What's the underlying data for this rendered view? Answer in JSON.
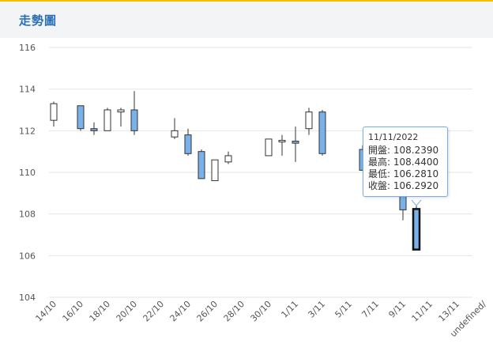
{
  "header": {
    "title": "走勢圖"
  },
  "colors": {
    "accent": "#2a6fb3",
    "up_fill": "#ffffff",
    "down_fill": "#7ab1e8",
    "grid": "#e6e6e6",
    "highlight_border": "#111111"
  },
  "chart_data": {
    "type": "candlestick",
    "ylim": [
      104,
      116
    ],
    "yticks": [
      "104",
      "106",
      "108",
      "110",
      "112",
      "114",
      "116"
    ],
    "xlabels": [
      "14/10",
      "16/10",
      "18/10",
      "20/10",
      "22/10",
      "24/10",
      "26/10",
      "28/10",
      "30/10",
      "1/11",
      "3/11",
      "5/11",
      "7/11",
      "9/11",
      "11/11",
      "13/11",
      "undefined/"
    ],
    "grid": true,
    "candles": [
      {
        "x": 0,
        "open": 112.5,
        "high": 113.4,
        "low": 112.2,
        "close": 113.3
      },
      {
        "x": 2,
        "open": 113.2,
        "high": 113.2,
        "low": 112.0,
        "close": 112.1
      },
      {
        "x": 3,
        "open": 112.1,
        "high": 112.4,
        "low": 111.8,
        "close": 112.0
      },
      {
        "x": 4,
        "open": 112.0,
        "high": 113.1,
        "low": 112.0,
        "close": 113.0
      },
      {
        "x": 5,
        "open": 112.9,
        "high": 113.1,
        "low": 112.2,
        "close": 113.0
      },
      {
        "x": 6,
        "open": 113.0,
        "high": 113.9,
        "low": 111.8,
        "close": 112.0
      },
      {
        "x": 9,
        "open": 111.7,
        "high": 112.6,
        "low": 111.6,
        "close": 112.0
      },
      {
        "x": 10,
        "open": 111.8,
        "high": 112.1,
        "low": 110.8,
        "close": 110.9
      },
      {
        "x": 11,
        "open": 111.0,
        "high": 111.1,
        "low": 109.7,
        "close": 109.7
      },
      {
        "x": 12,
        "open": 109.6,
        "high": 110.6,
        "low": 109.6,
        "close": 110.6
      },
      {
        "x": 13,
        "open": 110.5,
        "high": 111.0,
        "low": 110.4,
        "close": 110.8
      },
      {
        "x": 16,
        "open": 110.8,
        "high": 111.6,
        "low": 110.8,
        "close": 111.6
      },
      {
        "x": 17,
        "open": 111.5,
        "high": 111.8,
        "low": 110.8,
        "close": 111.5
      },
      {
        "x": 18,
        "open": 111.5,
        "high": 112.2,
        "low": 110.5,
        "close": 111.4
      },
      {
        "x": 19,
        "open": 112.1,
        "high": 113.1,
        "low": 111.8,
        "close": 112.9
      },
      {
        "x": 20,
        "open": 112.9,
        "high": 113.0,
        "low": 110.8,
        "close": 110.9
      },
      {
        "x": 23,
        "open": 111.1,
        "high": 111.3,
        "low": 110.1,
        "close": 110.1
      },
      {
        "x": 26,
        "open": 109.6,
        "high": 110.0,
        "low": 107.7,
        "close": 108.2
      },
      {
        "x": 27,
        "open": 108.239,
        "high": 108.44,
        "low": 106.281,
        "close": 106.292,
        "highlight": true
      }
    ],
    "tooltip": {
      "date": "11/11/2022",
      "rows": [
        "開盤: 108.2390",
        "最高: 108.4400",
        "最低: 106.2810",
        "收盤: 106.2920"
      ]
    }
  }
}
